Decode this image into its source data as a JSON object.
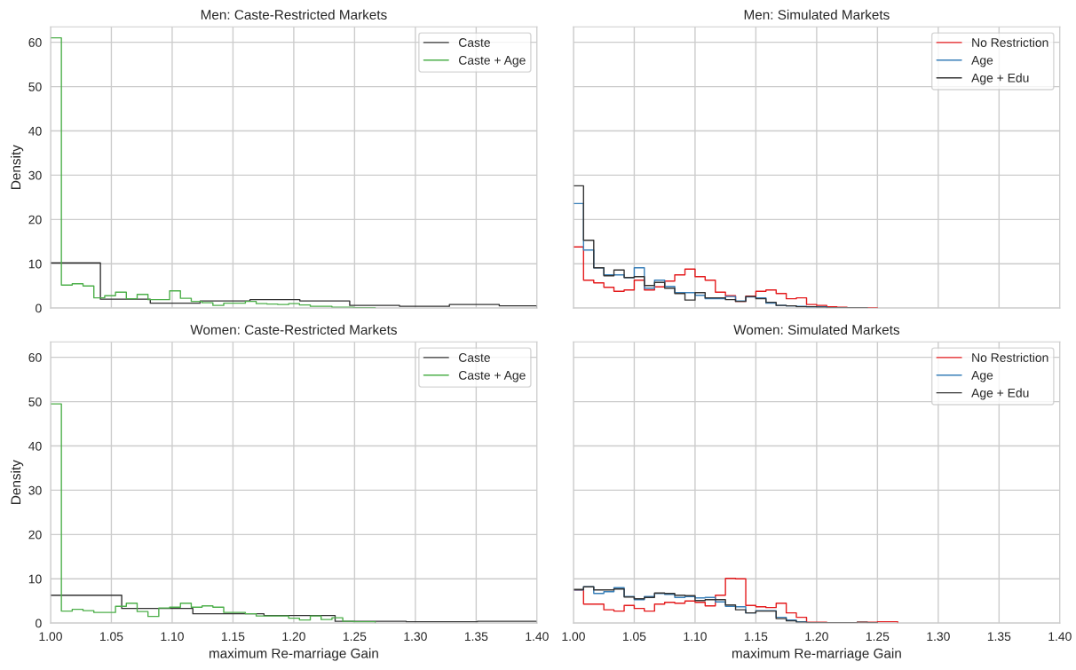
{
  "chart_data": [
    {
      "type": "step",
      "title": "Men: Caste-Restricted Markets",
      "ylabel": "Density",
      "xlim": [
        1.0,
        1.4
      ],
      "ylim": [
        0,
        63.5
      ],
      "xticks": [
        {
          "value": 1.0,
          "label": null
        },
        {
          "value": 1.05,
          "label": null
        },
        {
          "value": 1.1,
          "label": null
        },
        {
          "value": 1.15,
          "label": null
        },
        {
          "value": 1.2,
          "label": null
        },
        {
          "value": 1.25,
          "label": null
        },
        {
          "value": 1.3,
          "label": null
        },
        {
          "value": 1.35,
          "label": null
        },
        {
          "value": 1.4,
          "label": null
        }
      ],
      "yticks": [
        0,
        10,
        20,
        30,
        40,
        50,
        60
      ],
      "grid": true,
      "legend": "top right",
      "tick_labels": "y",
      "marker": "none",
      "series": [
        {
          "name": "Caste",
          "color": "#333333",
          "x": [
            1.0,
            1.041,
            1.082,
            1.123,
            1.164,
            1.205,
            1.246,
            1.287,
            1.328,
            1.369,
            1.4
          ],
          "values": [
            10.2,
            2.0,
            1.1,
            1.6,
            1.9,
            1.6,
            0.6,
            0.4,
            0.8,
            0.5,
            0
          ]
        },
        {
          "name": "Caste + Age",
          "color": "#4daf4a",
          "x": [
            1.0,
            1.0089,
            1.0178,
            1.0267,
            1.0356,
            1.0445,
            1.0534,
            1.0623,
            1.0712,
            1.0801,
            1.089,
            1.0979,
            1.1068,
            1.1157,
            1.1246,
            1.1335,
            1.1424,
            1.1513,
            1.1602,
            1.1691,
            1.178,
            1.1869,
            1.1958,
            1.2047,
            1.2136,
            1.2225,
            1.2314,
            1.2403,
            1.2492,
            1.2581,
            1.267
          ],
          "values": [
            61,
            5.2,
            5.5,
            5.0,
            2.3,
            2.8,
            3.6,
            2.1,
            3.1,
            1.9,
            1.9,
            3.9,
            2.2,
            1.5,
            1.2,
            0.6,
            1.1,
            1.1,
            1.5,
            1.0,
            0.9,
            0.8,
            1.0,
            0.7,
            0.4,
            0.4,
            0.2,
            0.2,
            0.1,
            0.1,
            0
          ]
        }
      ]
    },
    {
      "type": "step",
      "title": "Men: Simulated Markets",
      "xlim": [
        1.0,
        1.4
      ],
      "ylim": [
        0,
        63.5
      ],
      "xticks": [
        {
          "value": 1.0,
          "label": null
        },
        {
          "value": 1.05,
          "label": null
        },
        {
          "value": 1.1,
          "label": null
        },
        {
          "value": 1.15,
          "label": null
        },
        {
          "value": 1.2,
          "label": null
        },
        {
          "value": 1.25,
          "label": null
        },
        {
          "value": 1.3,
          "label": null
        },
        {
          "value": 1.35,
          "label": null
        },
        {
          "value": 1.4,
          "label": null
        }
      ],
      "yticks": [
        {
          "value": 0,
          "label": null
        },
        {
          "value": 10,
          "label": null
        },
        {
          "value": 20,
          "label": null
        },
        {
          "value": 30,
          "label": null
        },
        {
          "value": 40,
          "label": null
        },
        {
          "value": 50,
          "label": null
        },
        {
          "value": 60,
          "label": null
        }
      ],
      "grid": true,
      "legend": "top right",
      "tick_labels": false,
      "marker": "none",
      "series": [
        {
          "name": "No Restriction",
          "color": "#e41a1c",
          "x": [
            1.0,
            1.0083,
            1.0167,
            1.025,
            1.0333,
            1.0417,
            1.05,
            1.0583,
            1.0667,
            1.075,
            1.0833,
            1.0917,
            1.1,
            1.1083,
            1.1167,
            1.125,
            1.1333,
            1.1417,
            1.15,
            1.1583,
            1.1667,
            1.175,
            1.1833,
            1.1917,
            1.2,
            1.2083,
            1.2167,
            1.225,
            1.2333,
            1.2417,
            1.25
          ],
          "values": [
            13.8,
            6.3,
            5.7,
            4.7,
            3.8,
            4.1,
            6.3,
            4.1,
            4.8,
            6.1,
            7.5,
            8.8,
            7.1,
            6.3,
            3.6,
            2.8,
            1.5,
            2.7,
            3.8,
            4.1,
            3.3,
            2.1,
            2.3,
            0.8,
            0.6,
            0.3,
            0.2,
            0.1,
            0.1,
            0.1,
            0
          ]
        },
        {
          "name": "Age",
          "color": "#377eb8",
          "x": [
            1.0,
            1.0083,
            1.0167,
            1.025,
            1.0333,
            1.0417,
            1.05,
            1.0583,
            1.0667,
            1.075,
            1.0833,
            1.0917,
            1.1,
            1.1083,
            1.1167,
            1.125,
            1.1333,
            1.1417,
            1.15,
            1.1583,
            1.1667,
            1.175,
            1.1833,
            1.1917,
            1.2,
            1.2083
          ],
          "values": [
            23.6,
            13.1,
            9.1,
            7.5,
            7.5,
            6.9,
            9.1,
            4.5,
            6.3,
            4.9,
            3.5,
            3.5,
            2.9,
            2.1,
            2.1,
            2.6,
            1.6,
            2.5,
            2.3,
            1.1,
            0.6,
            0.5,
            0.4,
            0.2,
            0.3,
            0
          ]
        },
        {
          "name": "Age + Edu",
          "color": "#333333",
          "x": [
            1.0,
            1.0083,
            1.0167,
            1.025,
            1.0333,
            1.0417,
            1.05,
            1.0583,
            1.0667,
            1.075,
            1.0833,
            1.0917,
            1.1,
            1.1083,
            1.1167,
            1.125,
            1.1333,
            1.1417,
            1.15,
            1.1583,
            1.1667,
            1.175,
            1.1833,
            1.1917,
            1.2,
            1.2083,
            1.2167,
            1.225,
            1.2333,
            1.2417
          ],
          "values": [
            27.6,
            15.3,
            9.1,
            7.3,
            8.6,
            6.9,
            7.1,
            5.1,
            5.8,
            4.5,
            3.3,
            1.8,
            3.5,
            2.3,
            2.3,
            1.9,
            1.5,
            2.6,
            2.1,
            1.3,
            0.6,
            0.5,
            0.3,
            0.3,
            0.2,
            0.1,
            0.1,
            0.1,
            0.1,
            0
          ]
        }
      ]
    },
    {
      "type": "step",
      "title": "Women: Caste-Restricted Markets",
      "xlabel": "maximum Re-marriage Gain",
      "ylabel": "Density",
      "xlim": [
        1.0,
        1.4
      ],
      "ylim": [
        0,
        63.5
      ],
      "xticks": [
        {
          "value": 1.0,
          "label": "1.00"
        },
        {
          "value": 1.05,
          "label": "1.05"
        },
        {
          "value": 1.1,
          "label": "1.10"
        },
        {
          "value": 1.15,
          "label": "1.15"
        },
        {
          "value": 1.2,
          "label": "1.20"
        },
        {
          "value": 1.25,
          "label": "1.25"
        },
        {
          "value": 1.3,
          "label": "1.30"
        },
        {
          "value": 1.35,
          "label": "1.35"
        },
        {
          "value": 1.4,
          "label": "1.40"
        }
      ],
      "yticks": [
        0,
        10,
        20,
        30,
        40,
        50,
        60
      ],
      "grid": true,
      "legend": "top right",
      "marker": "none",
      "series": [
        {
          "name": "Caste",
          "color": "#333333",
          "x": [
            1.0,
            1.0585,
            1.117,
            1.1755,
            1.234,
            1.2925,
            1.351,
            1.4
          ],
          "values": [
            6.3,
            3.3,
            2.1,
            1.7,
            0.4,
            0.3,
            0.4,
            0
          ]
        },
        {
          "name": "Caste + Age",
          "color": "#4daf4a",
          "x": [
            1.0,
            1.0089,
            1.0178,
            1.0267,
            1.0356,
            1.0445,
            1.0534,
            1.0623,
            1.0712,
            1.0801,
            1.089,
            1.0979,
            1.1068,
            1.1157,
            1.1246,
            1.1335,
            1.1424,
            1.1513,
            1.1602,
            1.1691,
            1.178,
            1.1869,
            1.1958,
            1.2047,
            1.2136,
            1.2225,
            1.2314,
            1.2403,
            1.2492,
            1.2581,
            1.267
          ],
          "values": [
            49.5,
            2.7,
            3.1,
            2.8,
            2.4,
            2.4,
            3.8,
            4.5,
            2.6,
            1.5,
            3.4,
            3.6,
            4.5,
            3.6,
            3.9,
            3.6,
            2.4,
            2.4,
            2.1,
            1.6,
            1.6,
            1.6,
            1.1,
            0.7,
            1.6,
            0.8,
            1.2,
            0.4,
            0.3,
            0.3,
            0
          ]
        }
      ]
    },
    {
      "type": "step",
      "title": "Women: Simulated Markets",
      "xlabel": "maximum Re-marriage Gain",
      "xlim": [
        1.0,
        1.4
      ],
      "ylim": [
        0,
        63.5
      ],
      "xticks": [
        {
          "value": 1.0,
          "label": "1.00"
        },
        {
          "value": 1.05,
          "label": "1.05"
        },
        {
          "value": 1.1,
          "label": "1.10"
        },
        {
          "value": 1.15,
          "label": "1.15"
        },
        {
          "value": 1.2,
          "label": "1.20"
        },
        {
          "value": 1.25,
          "label": "1.25"
        },
        {
          "value": 1.3,
          "label": "1.30"
        },
        {
          "value": 1.35,
          "label": "1.35"
        },
        {
          "value": 1.4,
          "label": "1.40"
        }
      ],
      "yticks": [
        {
          "value": 0,
          "label": null
        },
        {
          "value": 10,
          "label": null
        },
        {
          "value": 20,
          "label": null
        },
        {
          "value": 30,
          "label": null
        },
        {
          "value": 40,
          "label": null
        },
        {
          "value": 50,
          "label": null
        },
        {
          "value": 60,
          "label": null
        }
      ],
      "grid": true,
      "legend": "top right",
      "tick_labels": "x",
      "marker": "none",
      "series": [
        {
          "name": "No Restriction",
          "color": "#e41a1c",
          "x": [
            1.0,
            1.0083,
            1.0167,
            1.025,
            1.0333,
            1.0417,
            1.05,
            1.0583,
            1.0667,
            1.075,
            1.0833,
            1.0917,
            1.1,
            1.1083,
            1.1167,
            1.125,
            1.1333,
            1.1417,
            1.15,
            1.1583,
            1.1667,
            1.175,
            1.1833,
            1.1917,
            1.2,
            1.2083,
            1.2167,
            1.225,
            1.2333,
            1.2417,
            1.25,
            1.2583,
            1.2667
          ],
          "values": [
            7.5,
            4.3,
            4.3,
            3.0,
            2.7,
            4.0,
            3.3,
            2.7,
            4.3,
            4.7,
            4.5,
            5.0,
            4.7,
            3.9,
            6.3,
            10.1,
            10.0,
            4.0,
            3.7,
            3.5,
            4.5,
            2.3,
            1.3,
            0.2,
            0.2,
            0.1,
            0.1,
            0.1,
            0.2,
            0.2,
            0.3,
            0.3,
            0
          ]
        },
        {
          "name": "Age",
          "color": "#377eb8",
          "x": [
            1.0,
            1.0083,
            1.0167,
            1.025,
            1.0333,
            1.0417,
            1.05,
            1.0583,
            1.0667,
            1.075,
            1.0833,
            1.0917,
            1.1,
            1.1083,
            1.1167,
            1.125,
            1.1333,
            1.1417,
            1.15,
            1.1583,
            1.1667,
            1.175,
            1.1833,
            1.1917,
            1.2
          ],
          "values": [
            7.5,
            8.2,
            6.7,
            7.1,
            8.0,
            6.0,
            5.3,
            6.0,
            6.7,
            6.5,
            5.8,
            6.0,
            5.7,
            5.8,
            4.8,
            3.8,
            3.7,
            2.3,
            2.8,
            2.8,
            1.3,
            0.7,
            0.3,
            0.1,
            0
          ]
        },
        {
          "name": "Age + Edu",
          "color": "#333333",
          "x": [
            1.0,
            1.0083,
            1.0167,
            1.025,
            1.0333,
            1.0417,
            1.05,
            1.0583,
            1.0667,
            1.075,
            1.0833,
            1.0917,
            1.1,
            1.1083,
            1.1167,
            1.125,
            1.1333,
            1.1417,
            1.15,
            1.1583,
            1.1667,
            1.175,
            1.1833,
            1.1917,
            1.2,
            1.2083,
            1.2167,
            1.225,
            1.2333,
            1.2417,
            1.25
          ],
          "values": [
            7.6,
            8.2,
            7.5,
            7.5,
            7.7,
            5.9,
            5.5,
            5.8,
            6.8,
            6.7,
            6.3,
            6.2,
            5.1,
            5.3,
            5.3,
            4.1,
            3.0,
            2.3,
            2.7,
            2.7,
            1.0,
            0.5,
            0.2,
            0.1,
            0.1,
            0.1,
            0.1,
            0.1,
            0.2,
            0.1,
            0
          ]
        }
      ]
    }
  ]
}
